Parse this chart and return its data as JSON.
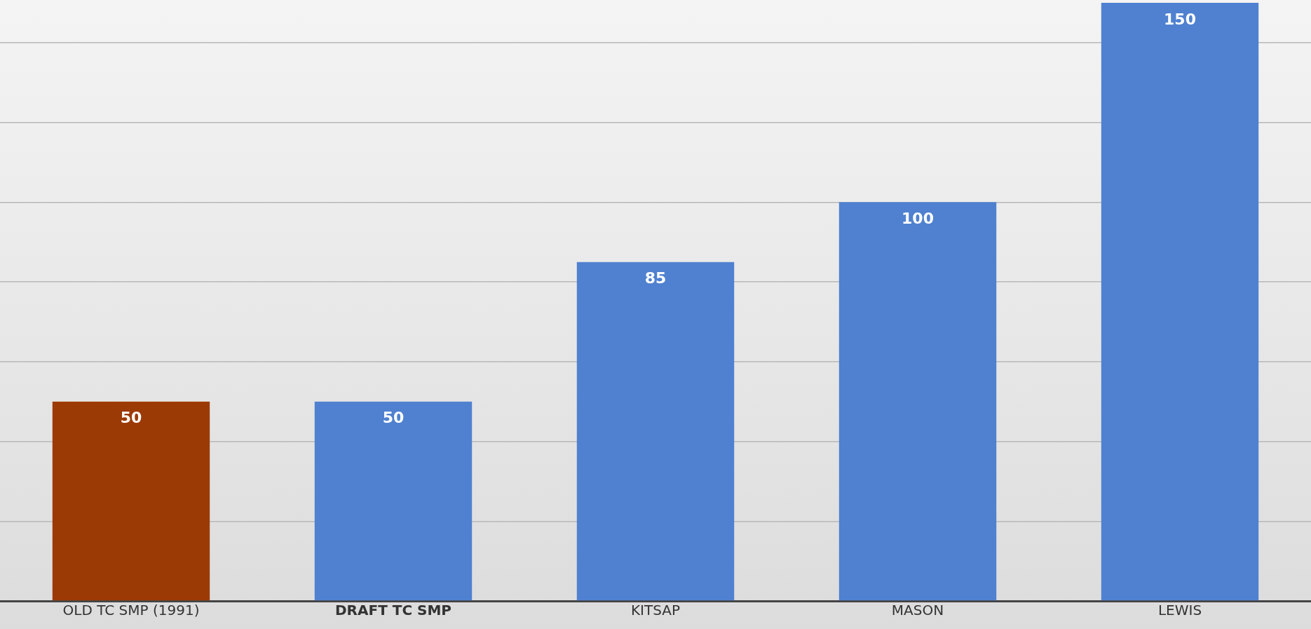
{
  "chart_data": {
    "type": "bar",
    "categories": [
      "OLD TC SMP (1991)",
      "DRAFT TC SMP",
      "KITSAP",
      "MASON",
      "LEWIS"
    ],
    "values": [
      50,
      50,
      85,
      100,
      150
    ],
    "colors": [
      "#9c3a06",
      "#4f81d0",
      "#4f81d0",
      "#4f81d0",
      "#4f81d0"
    ],
    "ylim": [
      0,
      150
    ],
    "yticks": [
      {
        "value": 0,
        "label": null
      },
      {
        "value": 20,
        "label": null
      },
      {
        "value": 40,
        "label": null
      },
      {
        "value": 60,
        "label": null
      },
      {
        "value": 80,
        "label": null
      },
      {
        "value": 100,
        "label": null
      },
      {
        "value": 120,
        "label": null
      },
      {
        "value": 140,
        "label": null
      }
    ],
    "grid": "y",
    "tick_labels": "x",
    "data_labels": true
  }
}
